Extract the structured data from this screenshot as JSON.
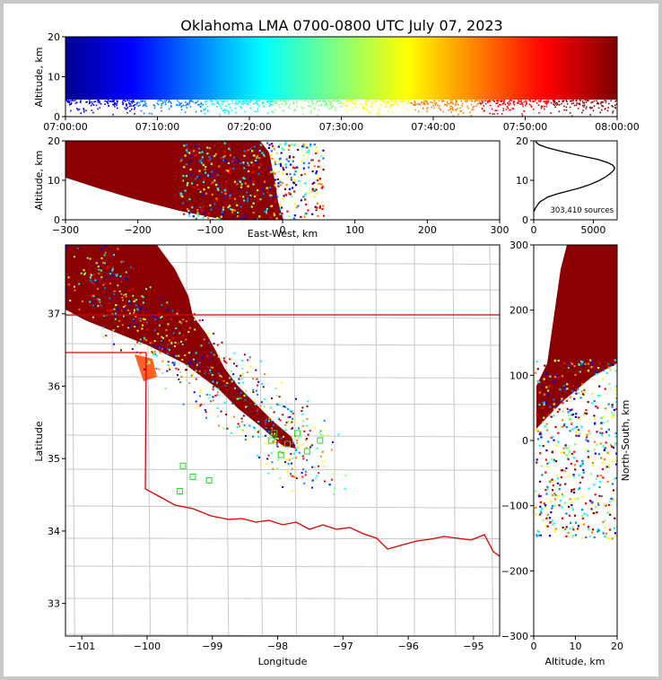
{
  "title": "Oklahoma LMA 0700-0800 UTC July 07, 2023",
  "chart_data": [
    {
      "id": "time-height",
      "type": "scatter",
      "ylabel": "Altitude, km",
      "xlim": [
        "07:00:00",
        "08:00:00"
      ],
      "ylim": [
        0,
        20
      ],
      "xticks": [
        "07:00:00",
        "07:10:00",
        "07:20:00",
        "07:30:00",
        "07:40:00",
        "07:50:00",
        "08:00:00"
      ],
      "yticks": [
        "0",
        "10",
        "20"
      ],
      "color_by": "time",
      "colormap": "jet"
    },
    {
      "id": "ew-altitude",
      "type": "scatter",
      "xlabel": "East-West, km",
      "ylabel": "Altitude, km",
      "xlim": [
        -300,
        300
      ],
      "ylim": [
        0,
        20
      ],
      "xticks": [
        "−300",
        "−200",
        "−100",
        "0",
        "100",
        "200",
        "300"
      ],
      "yticks": [
        "0",
        "10",
        "20"
      ]
    },
    {
      "id": "altitude-histogram",
      "type": "line",
      "annotation": "303,410 sources",
      "xlim": [
        0,
        7000
      ],
      "ylim": [
        0,
        20
      ],
      "xticks": [
        "0",
        "5000"
      ],
      "yticks": [
        "0",
        "10",
        "20"
      ],
      "x": [
        0,
        150,
        500,
        1200,
        2000,
        2900,
        3800,
        4600,
        5400,
        6000,
        6450,
        6700,
        6800,
        6650,
        6200,
        5400,
        4300,
        3100,
        2000,
        1100,
        450,
        150
      ],
      "y": [
        2.0,
        3.0,
        4.5,
        5.8,
        6.6,
        7.3,
        8.0,
        8.8,
        9.8,
        10.8,
        11.8,
        12.5,
        13.1,
        13.8,
        14.5,
        15.3,
        16.0,
        16.8,
        17.6,
        18.3,
        19.0,
        19.8
      ]
    },
    {
      "id": "plan-view",
      "type": "scatter",
      "xlabel": "Longitude",
      "ylabel": "Latitude",
      "xlim": [
        -101.25,
        -94.6
      ],
      "ylim": [
        32.55,
        37.95
      ],
      "xticks": [
        "−101",
        "−100",
        "−99",
        "−98",
        "−97",
        "−96",
        "−95"
      ],
      "yticks": [
        "33",
        "34",
        "35",
        "36",
        "37"
      ],
      "state_border_color": "#e00000",
      "county_line_color": "#c8c8c8",
      "station_color": "#22dd22",
      "stations": [
        [
          -99.45,
          34.9
        ],
        [
          -99.3,
          34.75
        ],
        [
          -99.05,
          34.7
        ],
        [
          -99.5,
          34.55
        ],
        [
          -98.1,
          35.25
        ],
        [
          -97.95,
          35.05
        ],
        [
          -97.85,
          35.2
        ],
        [
          -97.7,
          35.35
        ],
        [
          -97.55,
          35.1
        ],
        [
          -97.35,
          35.25
        ],
        [
          -98.05,
          35.35
        ]
      ]
    },
    {
      "id": "altitude-ns",
      "type": "scatter",
      "xlabel": "Altitude, km",
      "ylabel": "North-South, km",
      "xlim": [
        0,
        20
      ],
      "ylim": [
        -300,
        300
      ],
      "xticks": [
        "0",
        "10",
        "20"
      ],
      "yticks": [
        "−300",
        "−200",
        "−100",
        "0",
        "100",
        "200",
        "300"
      ]
    }
  ]
}
